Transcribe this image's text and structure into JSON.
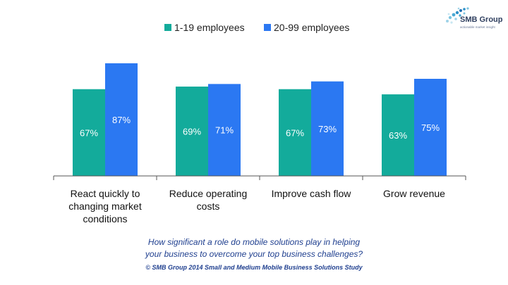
{
  "logo": {
    "name": "SMB Group",
    "tagline": "actionable market insight"
  },
  "question": {
    "line1": "How significant a role do mobile solutions play in helping",
    "line2": "your business to overcome your top business challenges?"
  },
  "source": "© SMB Group 2014 Small and Medium Mobile Business Solutions Study",
  "colors": {
    "series1": "#13ab9b",
    "series2": "#2b78f2",
    "axis": "#555555"
  },
  "chart_data": {
    "type": "bar",
    "categories": [
      [
        "React quickly to",
        "changing market",
        "conditions"
      ],
      [
        "Reduce operating",
        "costs"
      ],
      [
        "Improve cash flow"
      ],
      [
        "Grow revenue"
      ]
    ],
    "series": [
      {
        "name": "1-19 employees",
        "values": [
          67,
          69,
          67,
          63
        ],
        "labels": [
          "67%",
          "69%",
          "67%",
          "63%"
        ],
        "color": "#13ab9b"
      },
      {
        "name": "20-99 employees",
        "values": [
          87,
          71,
          73,
          75
        ],
        "labels": [
          "87%",
          "71%",
          "73%",
          "75%"
        ],
        "color": "#2b78f2"
      }
    ],
    "ylim": [
      0,
      100
    ],
    "grid": false,
    "legend": "top-center"
  }
}
